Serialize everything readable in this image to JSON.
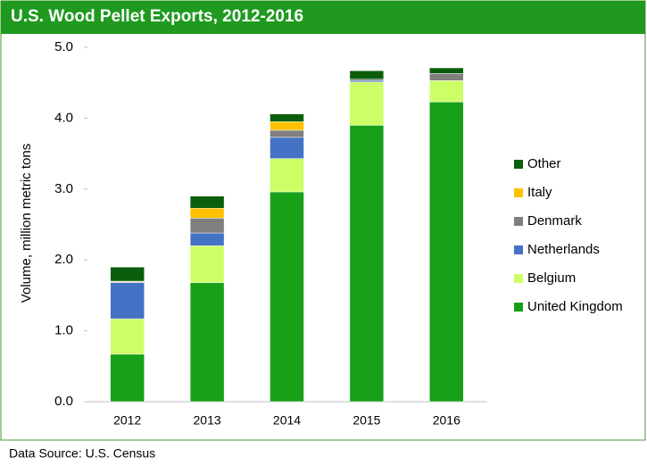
{
  "chart_data": {
    "type": "stacked-bar",
    "title": "U.S. Wood Pellet Exports, 2012-2016",
    "y_label": "Volume, million metric tons",
    "source": "Data Source: U.S. Census",
    "categories": [
      "2012",
      "2013",
      "2014",
      "2015",
      "2016"
    ],
    "series": [
      {
        "name": "United Kingdom",
        "color": "#18a018",
        "values": [
          0.67,
          1.68,
          2.96,
          3.9,
          4.23
        ]
      },
      {
        "name": "Belgium",
        "color": "#ccff66",
        "values": [
          0.5,
          0.52,
          0.47,
          0.61,
          0.3
        ]
      },
      {
        "name": "Netherlands",
        "color": "#4472c4",
        "values": [
          0.51,
          0.18,
          0.3,
          0.02,
          0
        ]
      },
      {
        "name": "Denmark",
        "color": "#7f7f7f",
        "values": [
          0.01,
          0.21,
          0.1,
          0.02,
          0.1
        ]
      },
      {
        "name": "Italy",
        "color": "#ffc000",
        "values": [
          0.01,
          0.14,
          0.12,
          0,
          0
        ]
      },
      {
        "name": "Other",
        "color": "#0b5e0b",
        "values": [
          0.2,
          0.17,
          0.11,
          0.12,
          0.08
        ]
      }
    ],
    "ylim": [
      0,
      5
    ],
    "yticks": [
      {
        "value": 0,
        "label": "0.0"
      },
      {
        "value": 1,
        "label": "1.0"
      },
      {
        "value": 2,
        "label": "2.0"
      },
      {
        "value": 3,
        "label": "3.0"
      },
      {
        "value": 4,
        "label": "4.0"
      },
      {
        "value": 5,
        "label": "5.0"
      }
    ],
    "legend": "right"
  }
}
